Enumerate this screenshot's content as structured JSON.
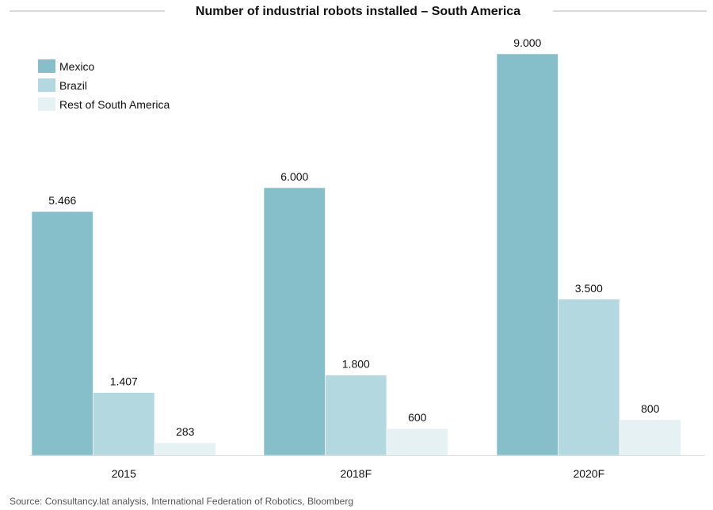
{
  "chart_data": {
    "type": "bar",
    "title": "Number of industrial robots installed – South America",
    "categories": [
      "2015",
      "2018F",
      "2020F"
    ],
    "series": [
      {
        "name": "Mexico",
        "color": "#86bfca",
        "values": [
          5466,
          6000,
          9000
        ],
        "labels": [
          "5.466",
          "6.000",
          "9.000"
        ]
      },
      {
        "name": "Brazil",
        "color": "#b4d8e0",
        "values": [
          1407,
          1800,
          3500
        ],
        "labels": [
          "1.407",
          "1.800",
          "3.500"
        ]
      },
      {
        "name": "Rest of South America",
        "color": "#e6f1f3",
        "values": [
          283,
          600,
          800
        ],
        "labels": [
          "283",
          "600",
          "800"
        ]
      }
    ],
    "xlabel": "",
    "ylabel": "",
    "ylim": [
      0,
      9000
    ],
    "grid": false,
    "legend": "top-left",
    "source": "Source: Consultancy.lat analysis, International Federation of Robotics, Bloomberg"
  }
}
